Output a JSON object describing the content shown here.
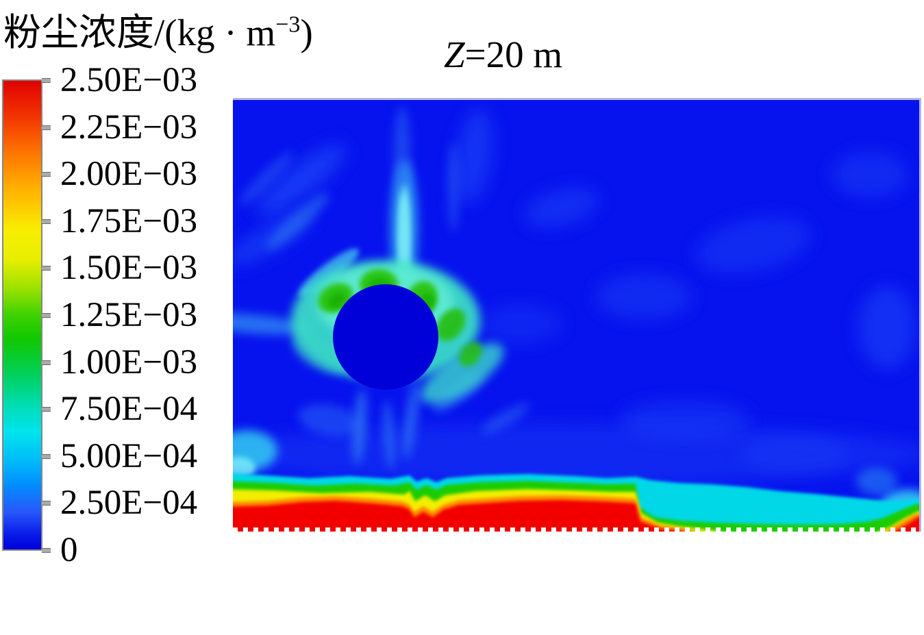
{
  "header": {
    "unit_label": {
      "prefix": "粉尘浓度/(kg · m",
      "sup": "−3",
      "suffix": ")"
    }
  },
  "plot": {
    "title": {
      "italic": "Z",
      "rest": "=20 m"
    }
  },
  "colorbar": {
    "ticks": [
      "2.50E−03",
      "2.25E−03",
      "2.00E−03",
      "1.75E−03",
      "1.50E−03",
      "1.25E−03",
      "1.00E−03",
      "7.50E−04",
      "5.00E−04",
      "2.50E−04",
      "0"
    ],
    "gradient": [
      "#e00000 0%",
      "#f03000 7%",
      "#ff7a00 16%",
      "#ffb800 24%",
      "#f8ee00 32%",
      "#e8ee00 38%",
      "#a0e200 44%",
      "#3ed200 50%",
      "#12c800 55%",
      "#00d060 63%",
      "#00dcb0 69%",
      "#00e4ee 75%",
      "#00bcf8 81%",
      "#0090ff 86%",
      "#2858fa 92%",
      "#0718e8 97%",
      "#0000d8 100%"
    ]
  },
  "chart_data": {
    "type": "heatmap",
    "subtype": "CFD dust-concentration contour slice (plan view)",
    "title": "Z=20 m",
    "colorbar_label": "粉尘浓度/(kg · m−3)",
    "colorbar_label_meaning": "dust concentration / (kg·m⁻³)",
    "legend_position": "left, vertical colorbar, max at top",
    "value_min": 0,
    "value_max": 0.0025,
    "colorbar_tick_values": [
      0.0025,
      0.00225,
      0.002,
      0.00175,
      0.0015,
      0.00125,
      0.001,
      0.00075,
      0.0005,
      0.00025,
      0
    ],
    "colorbar_tick_labels": [
      "2.50E−03",
      "2.25E−03",
      "2.00E−03",
      "1.75E−03",
      "1.50E−03",
      "1.25E−03",
      "1.00E−03",
      "7.50E−04",
      "5.00E−04",
      "2.50E−04",
      "0"
    ],
    "colormap": "rainbow: blue(0) → cyan(5.0E-04) → green(1.0E-03) → yellow(1.6E-03) → orange(2.0E-03) → red(2.5E-03)",
    "features": [
      {
        "name": "ambient field",
        "approx_value_range_kg_m3": [
          0,
          0.00025
        ],
        "color": "blue",
        "extent": "majority of domain"
      },
      {
        "name": "circular obstruction (blanked no-data region)",
        "shape": "circle",
        "center_fraction_xy": [
          0.22,
          0.55
        ],
        "radius_fraction": 0.077,
        "color": "dark blue"
      },
      {
        "name": "windward high-concentration arc on top of circle",
        "approx_value_range_kg_m3": [
          0.001,
          0.0015
        ],
        "color": "green patches within cyan halo"
      },
      {
        "name": "cyan halo and radial plumes around circle",
        "approx_value_range_kg_m3": [
          0.0005,
          0.00075
        ],
        "note": "strong vertical plume rising above circle, diagonal streaks to upper-left and lower-right"
      },
      {
        "name": "ground-level dust layer along bottom edge",
        "approx_value_range_kg_m3": [
          0.002,
          0.0025
        ],
        "color": "red with yellow/green/cyan transition above",
        "extent": "full red from left edge to ~59% width, step down, red resumes near right corner"
      },
      {
        "name": "bottom band mid-right section",
        "approx_value_range_kg_m3": [
          0.00025,
          0.001
        ],
        "note": "red layer absent between ~59% and ~93% of width; only cyan/green near ground"
      },
      {
        "name": "bottom boundary",
        "note": "dashed white ground line across plot bottom"
      }
    ]
  }
}
